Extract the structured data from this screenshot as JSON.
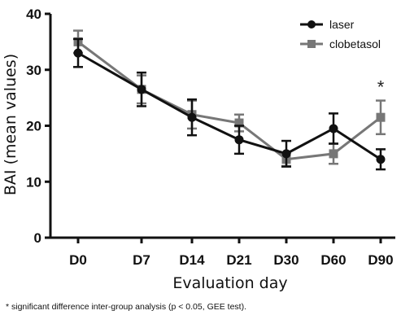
{
  "chart_data": {
    "type": "line",
    "categories": [
      "D0",
      "D7",
      "D14",
      "D21",
      "D30",
      "D60",
      "D90"
    ],
    "ylabel": "BAI (mean values)",
    "xlabel": "Evaluation day",
    "ylim": [
      0,
      40
    ],
    "yticks": [
      0,
      10,
      20,
      30,
      40
    ],
    "grid": false,
    "legend_position": "top-right",
    "series": [
      {
        "name": "laser",
        "color": "#111111",
        "marker": "circle",
        "values": [
          33.0,
          26.5,
          21.5,
          17.5,
          15.0,
          19.5,
          14.0
        ],
        "error": [
          2.5,
          3.0,
          3.2,
          2.5,
          2.3,
          2.7,
          1.8
        ]
      },
      {
        "name": "clobetasol",
        "color": "#777777",
        "marker": "square",
        "values": [
          35.0,
          26.5,
          22.0,
          20.5,
          14.0,
          15.0,
          21.5
        ],
        "error": [
          2.0,
          2.5,
          2.5,
          1.5,
          1.2,
          1.8,
          3.0
        ]
      }
    ],
    "annotations": [
      {
        "text": "*",
        "category": "D90",
        "y": 27
      }
    ],
    "footnote": "* significant difference inter-group analysis (p < 0.05, GEE test)."
  }
}
